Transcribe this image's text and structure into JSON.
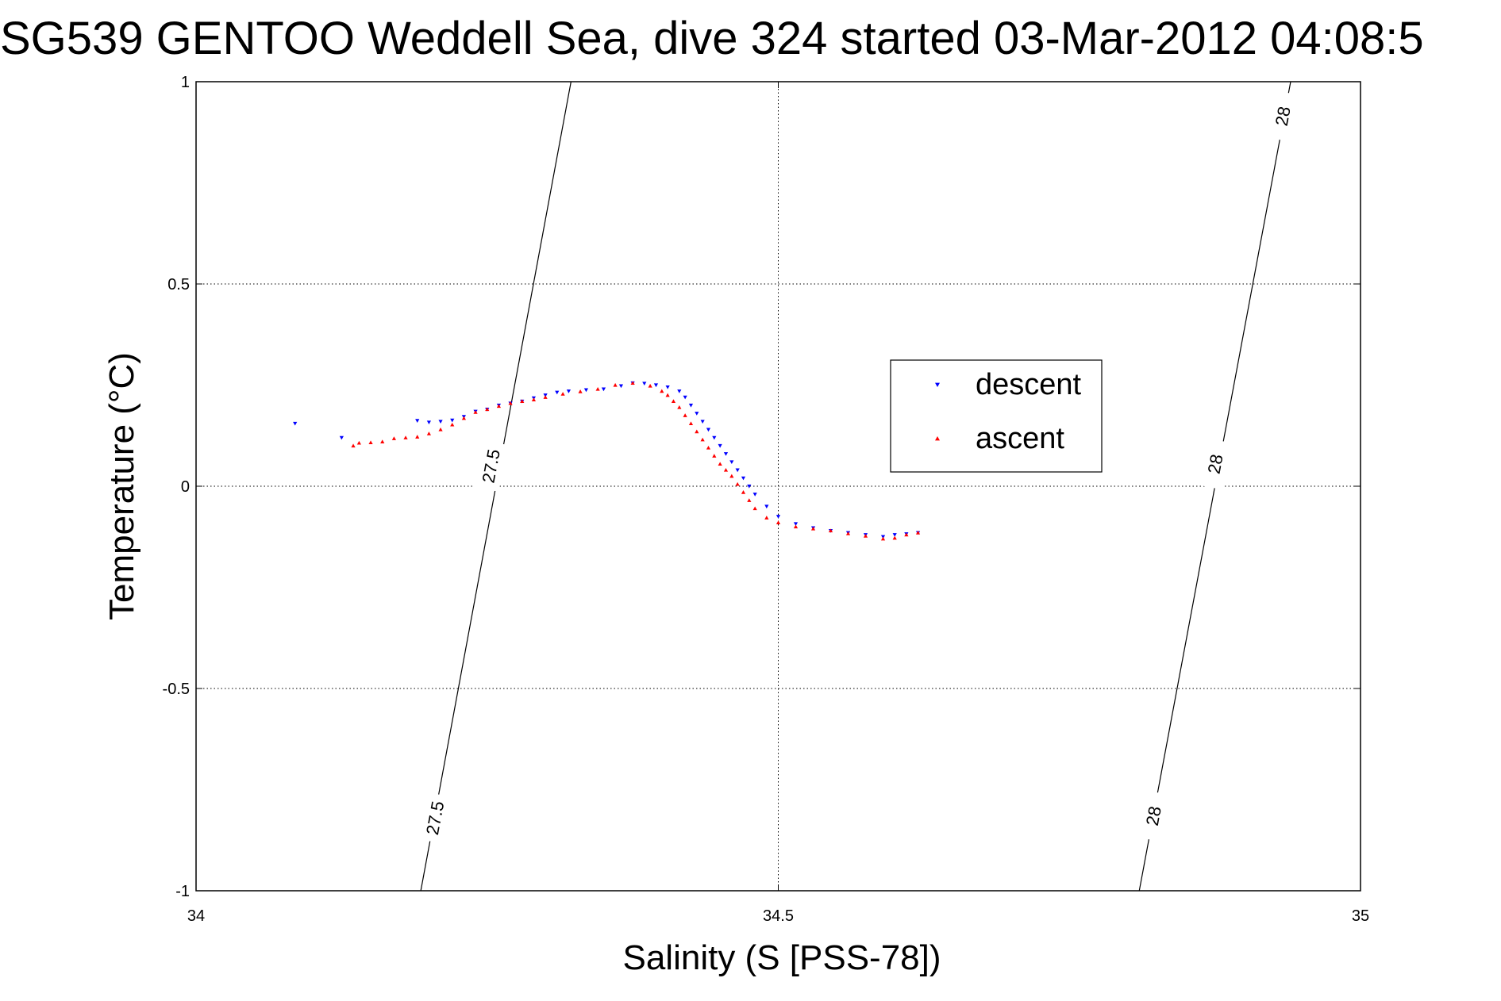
{
  "chart_data": {
    "type": "scatter",
    "title": "SG539 GENTOO Weddell Sea, dive 324 started 03-Mar-2012 04:08:5",
    "xlabel": "Salinity (S [PSS-78])",
    "ylabel": "Temperature (°C)",
    "xlim": [
      34,
      35
    ],
    "ylim": [
      -1,
      1
    ],
    "xticks": [
      {
        "value": 34,
        "label": "34"
      },
      {
        "value": 34.5,
        "label": "34.5"
      },
      {
        "value": 35,
        "label": "35"
      }
    ],
    "yticks": [
      {
        "value": -1,
        "label": "-1"
      },
      {
        "value": -0.5,
        "label": "-0.5"
      },
      {
        "value": 0,
        "label": "0"
      },
      {
        "value": 0.5,
        "label": "0.5"
      },
      {
        "value": 1,
        "label": "1"
      }
    ],
    "grid": true,
    "legend_position": "center-right",
    "contours": [
      {
        "level": "27.5",
        "points": [
          [
            34.193,
            -1
          ],
          [
            34.322,
            1
          ]
        ],
        "labels": [
          {
            "x": 34.205,
            "y": -0.82,
            "text": "27.5"
          },
          {
            "x": 34.253,
            "y": 0.05,
            "text": "27.5"
          }
        ]
      },
      {
        "level": "28",
        "points": [
          [
            34.81,
            -1
          ],
          [
            34.94,
            1
          ]
        ],
        "labels": [
          {
            "x": 34.822,
            "y": -0.815,
            "text": "28"
          },
          {
            "x": 34.875,
            "y": 0.055,
            "text": "28"
          },
          {
            "x": 34.933,
            "y": 0.915,
            "text": "28"
          }
        ]
      }
    ],
    "series": [
      {
        "name": "descent",
        "color": "#0000ff",
        "marker": "triangle-down",
        "points": [
          [
            34.085,
            0.155
          ],
          [
            34.125,
            0.12
          ],
          [
            34.19,
            0.162
          ],
          [
            34.2,
            0.158
          ],
          [
            34.21,
            0.16
          ],
          [
            34.22,
            0.163
          ],
          [
            34.23,
            0.172
          ],
          [
            34.24,
            0.185
          ],
          [
            34.25,
            0.19
          ],
          [
            34.26,
            0.2
          ],
          [
            34.27,
            0.205
          ],
          [
            34.28,
            0.21
          ],
          [
            34.29,
            0.218
          ],
          [
            34.3,
            0.225
          ],
          [
            34.31,
            0.232
          ],
          [
            34.32,
            0.235
          ],
          [
            34.335,
            0.238
          ],
          [
            34.35,
            0.24
          ],
          [
            34.365,
            0.248
          ],
          [
            34.375,
            0.255
          ],
          [
            34.385,
            0.254
          ],
          [
            34.395,
            0.25
          ],
          [
            34.405,
            0.245
          ],
          [
            34.415,
            0.235
          ],
          [
            34.42,
            0.22
          ],
          [
            34.425,
            0.2
          ],
          [
            34.43,
            0.18
          ],
          [
            34.435,
            0.16
          ],
          [
            34.44,
            0.14
          ],
          [
            34.445,
            0.12
          ],
          [
            34.45,
            0.1
          ],
          [
            34.455,
            0.08
          ],
          [
            34.46,
            0.06
          ],
          [
            34.465,
            0.04
          ],
          [
            34.47,
            0.02
          ],
          [
            34.475,
            0.0
          ],
          [
            34.48,
            -0.02
          ],
          [
            34.49,
            -0.05
          ],
          [
            34.5,
            -0.075
          ],
          [
            34.515,
            -0.093
          ],
          [
            34.53,
            -0.103
          ],
          [
            34.545,
            -0.11
          ],
          [
            34.56,
            -0.115
          ],
          [
            34.575,
            -0.12
          ],
          [
            34.59,
            -0.125
          ],
          [
            34.6,
            -0.12
          ],
          [
            34.61,
            -0.118
          ],
          [
            34.62,
            -0.115
          ]
        ]
      },
      {
        "name": "ascent",
        "color": "#ff0000",
        "marker": "triangle-up",
        "points": [
          [
            34.135,
            0.1
          ],
          [
            34.14,
            0.107
          ],
          [
            34.15,
            0.108
          ],
          [
            34.16,
            0.11
          ],
          [
            34.17,
            0.118
          ],
          [
            34.18,
            0.12
          ],
          [
            34.19,
            0.122
          ],
          [
            34.2,
            0.13
          ],
          [
            34.21,
            0.14
          ],
          [
            34.22,
            0.152
          ],
          [
            34.23,
            0.168
          ],
          [
            34.24,
            0.183
          ],
          [
            34.25,
            0.19
          ],
          [
            34.26,
            0.198
          ],
          [
            34.27,
            0.205
          ],
          [
            34.28,
            0.21
          ],
          [
            34.29,
            0.214
          ],
          [
            34.3,
            0.22
          ],
          [
            34.315,
            0.228
          ],
          [
            34.33,
            0.234
          ],
          [
            34.345,
            0.24
          ],
          [
            34.36,
            0.25
          ],
          [
            34.375,
            0.255
          ],
          [
            34.39,
            0.248
          ],
          [
            34.4,
            0.235
          ],
          [
            34.405,
            0.225
          ],
          [
            34.41,
            0.21
          ],
          [
            34.415,
            0.195
          ],
          [
            34.42,
            0.175
          ],
          [
            34.425,
            0.155
          ],
          [
            34.43,
            0.135
          ],
          [
            34.435,
            0.115
          ],
          [
            34.44,
            0.095
          ],
          [
            34.445,
            0.075
          ],
          [
            34.45,
            0.055
          ],
          [
            34.455,
            0.04
          ],
          [
            34.46,
            0.025
          ],
          [
            34.465,
            0.005
          ],
          [
            34.47,
            -0.015
          ],
          [
            34.475,
            -0.035
          ],
          [
            34.48,
            -0.055
          ],
          [
            34.49,
            -0.078
          ],
          [
            34.5,
            -0.09
          ],
          [
            34.515,
            -0.1
          ],
          [
            34.53,
            -0.105
          ],
          [
            34.545,
            -0.11
          ],
          [
            34.56,
            -0.117
          ],
          [
            34.575,
            -0.123
          ],
          [
            34.59,
            -0.13
          ],
          [
            34.6,
            -0.128
          ],
          [
            34.61,
            -0.12
          ],
          [
            34.62,
            -0.115
          ]
        ]
      }
    ]
  }
}
